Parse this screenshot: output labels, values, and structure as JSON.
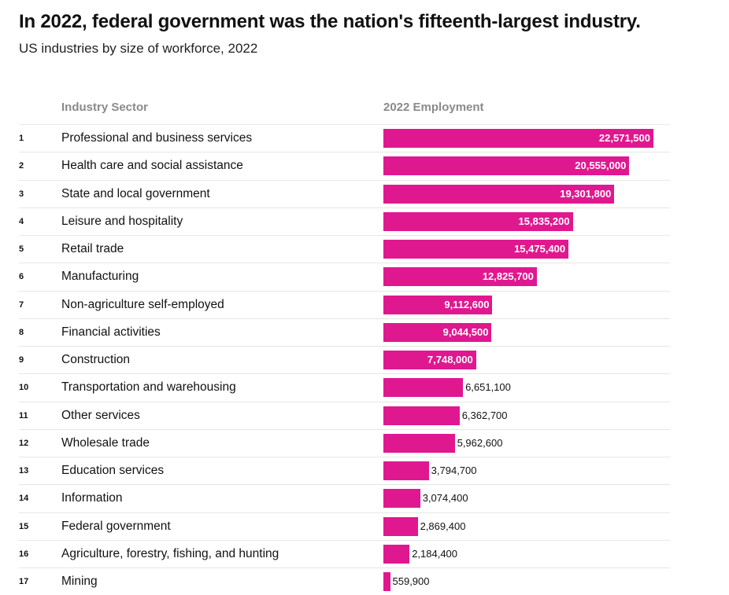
{
  "header": {
    "title": "In 2022, federal government was the nation's fifteenth-largest industry.",
    "subtitle": "US industries by size of workforce, 2022"
  },
  "columns": {
    "sector": "Industry Sector",
    "employment": "2022 Employment"
  },
  "colors": {
    "bar": "#e0188f",
    "divider": "#e6e6e6",
    "header_text": "#8a8a8a"
  },
  "chart_data": {
    "type": "bar",
    "orientation": "horizontal",
    "title": "In 2022, federal government was the nation's fifteenth-largest industry.",
    "subtitle": "US industries by size of workforce, 2022",
    "xlabel": "2022 Employment",
    "ylabel": "Industry Sector",
    "xlim": [
      0,
      22571500
    ],
    "grid": false,
    "rows": [
      {
        "rank": "1",
        "sector": "Professional and business services",
        "value": 22571500,
        "label": "22,571,500"
      },
      {
        "rank": "2",
        "sector": "Health care and social assistance",
        "value": 20555000,
        "label": "20,555,000"
      },
      {
        "rank": "3",
        "sector": "State and local government",
        "value": 19301800,
        "label": "19,301,800"
      },
      {
        "rank": "4",
        "sector": "Leisure and hospitality",
        "value": 15835200,
        "label": "15,835,200"
      },
      {
        "rank": "5",
        "sector": "Retail trade",
        "value": 15475400,
        "label": "15,475,400"
      },
      {
        "rank": "6",
        "sector": "Manufacturing",
        "value": 12825700,
        "label": "12,825,700"
      },
      {
        "rank": "7",
        "sector": "Non-agriculture self-employed",
        "value": 9112600,
        "label": "9,112,600"
      },
      {
        "rank": "8",
        "sector": "Financial activities",
        "value": 9044500,
        "label": "9,044,500"
      },
      {
        "rank": "9",
        "sector": "Construction",
        "value": 7748000,
        "label": "7,748,000"
      },
      {
        "rank": "10",
        "sector": "Transportation and warehousing",
        "value": 6651100,
        "label": "6,651,100"
      },
      {
        "rank": "11",
        "sector": "Other services",
        "value": 6362700,
        "label": "6,362,700"
      },
      {
        "rank": "12",
        "sector": "Wholesale trade",
        "value": 5962600,
        "label": "5,962,600"
      },
      {
        "rank": "13",
        "sector": "Education services",
        "value": 3794700,
        "label": "3,794,700"
      },
      {
        "rank": "14",
        "sector": "Information",
        "value": 3074400,
        "label": "3,074,400"
      },
      {
        "rank": "15",
        "sector": "Federal government",
        "value": 2869400,
        "label": "2,869,400"
      },
      {
        "rank": "16",
        "sector": "Agriculture, forestry, fishing, and hunting",
        "value": 2184400,
        "label": "2,184,400"
      },
      {
        "rank": "17",
        "sector": "Mining",
        "value": 559900,
        "label": "559,900"
      }
    ]
  }
}
